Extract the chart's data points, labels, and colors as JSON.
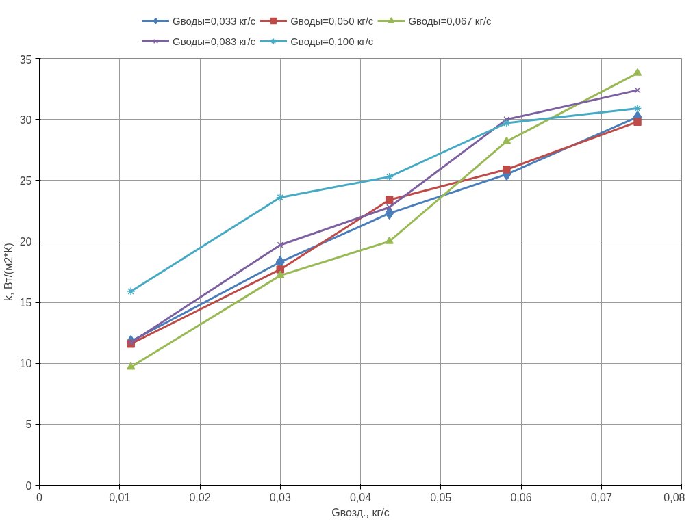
{
  "chart_data": {
    "type": "line",
    "xlabel": "Gвозд., кг/с",
    "ylabel": "k, Вт/(м2*К)",
    "x": [
      0.0114,
      0.03,
      0.0436,
      0.0582,
      0.0745
    ],
    "xlim": [
      0,
      0.08
    ],
    "xticks": [
      {
        "value": 0,
        "label": "0"
      },
      {
        "value": 0.01,
        "label": "0,01"
      },
      {
        "value": 0.02,
        "label": "0,02"
      },
      {
        "value": 0.03,
        "label": "0,03"
      },
      {
        "value": 0.04,
        "label": "0,04"
      },
      {
        "value": 0.05,
        "label": "0,05"
      },
      {
        "value": 0.06,
        "label": "0,06"
      },
      {
        "value": 0.07,
        "label": "0,07"
      },
      {
        "value": 0.08,
        "label": "0,08"
      }
    ],
    "ylim": [
      0,
      35
    ],
    "yticks": [
      0,
      5,
      10,
      15,
      20,
      25,
      30,
      35
    ],
    "grid": true,
    "legend": "top",
    "series": [
      {
        "name": "Gводы=0,033 кг/с",
        "color": "#4a7ebb",
        "marker": "diamond",
        "values": [
          11.8,
          18.3,
          22.3,
          25.5,
          30.2
        ]
      },
      {
        "name": "Gводы=0,050 кг/с",
        "color": "#be4b48",
        "marker": "square",
        "values": [
          11.6,
          17.7,
          23.4,
          25.9,
          29.8
        ]
      },
      {
        "name": "Gводы=0,067 кг/с",
        "color": "#98b954",
        "marker": "triangle",
        "values": [
          9.7,
          17.2,
          20.0,
          28.2,
          33.8
        ]
      },
      {
        "name": "Gводы=0,083 кг/с",
        "color": "#7d60a0",
        "marker": "x",
        "values": [
          11.7,
          19.7,
          22.8,
          30.0,
          32.4
        ]
      },
      {
        "name": "Gводы=0,100 кг/с",
        "color": "#46aac5",
        "marker": "cross",
        "values": [
          15.9,
          23.6,
          25.3,
          29.7,
          30.9
        ]
      }
    ]
  }
}
